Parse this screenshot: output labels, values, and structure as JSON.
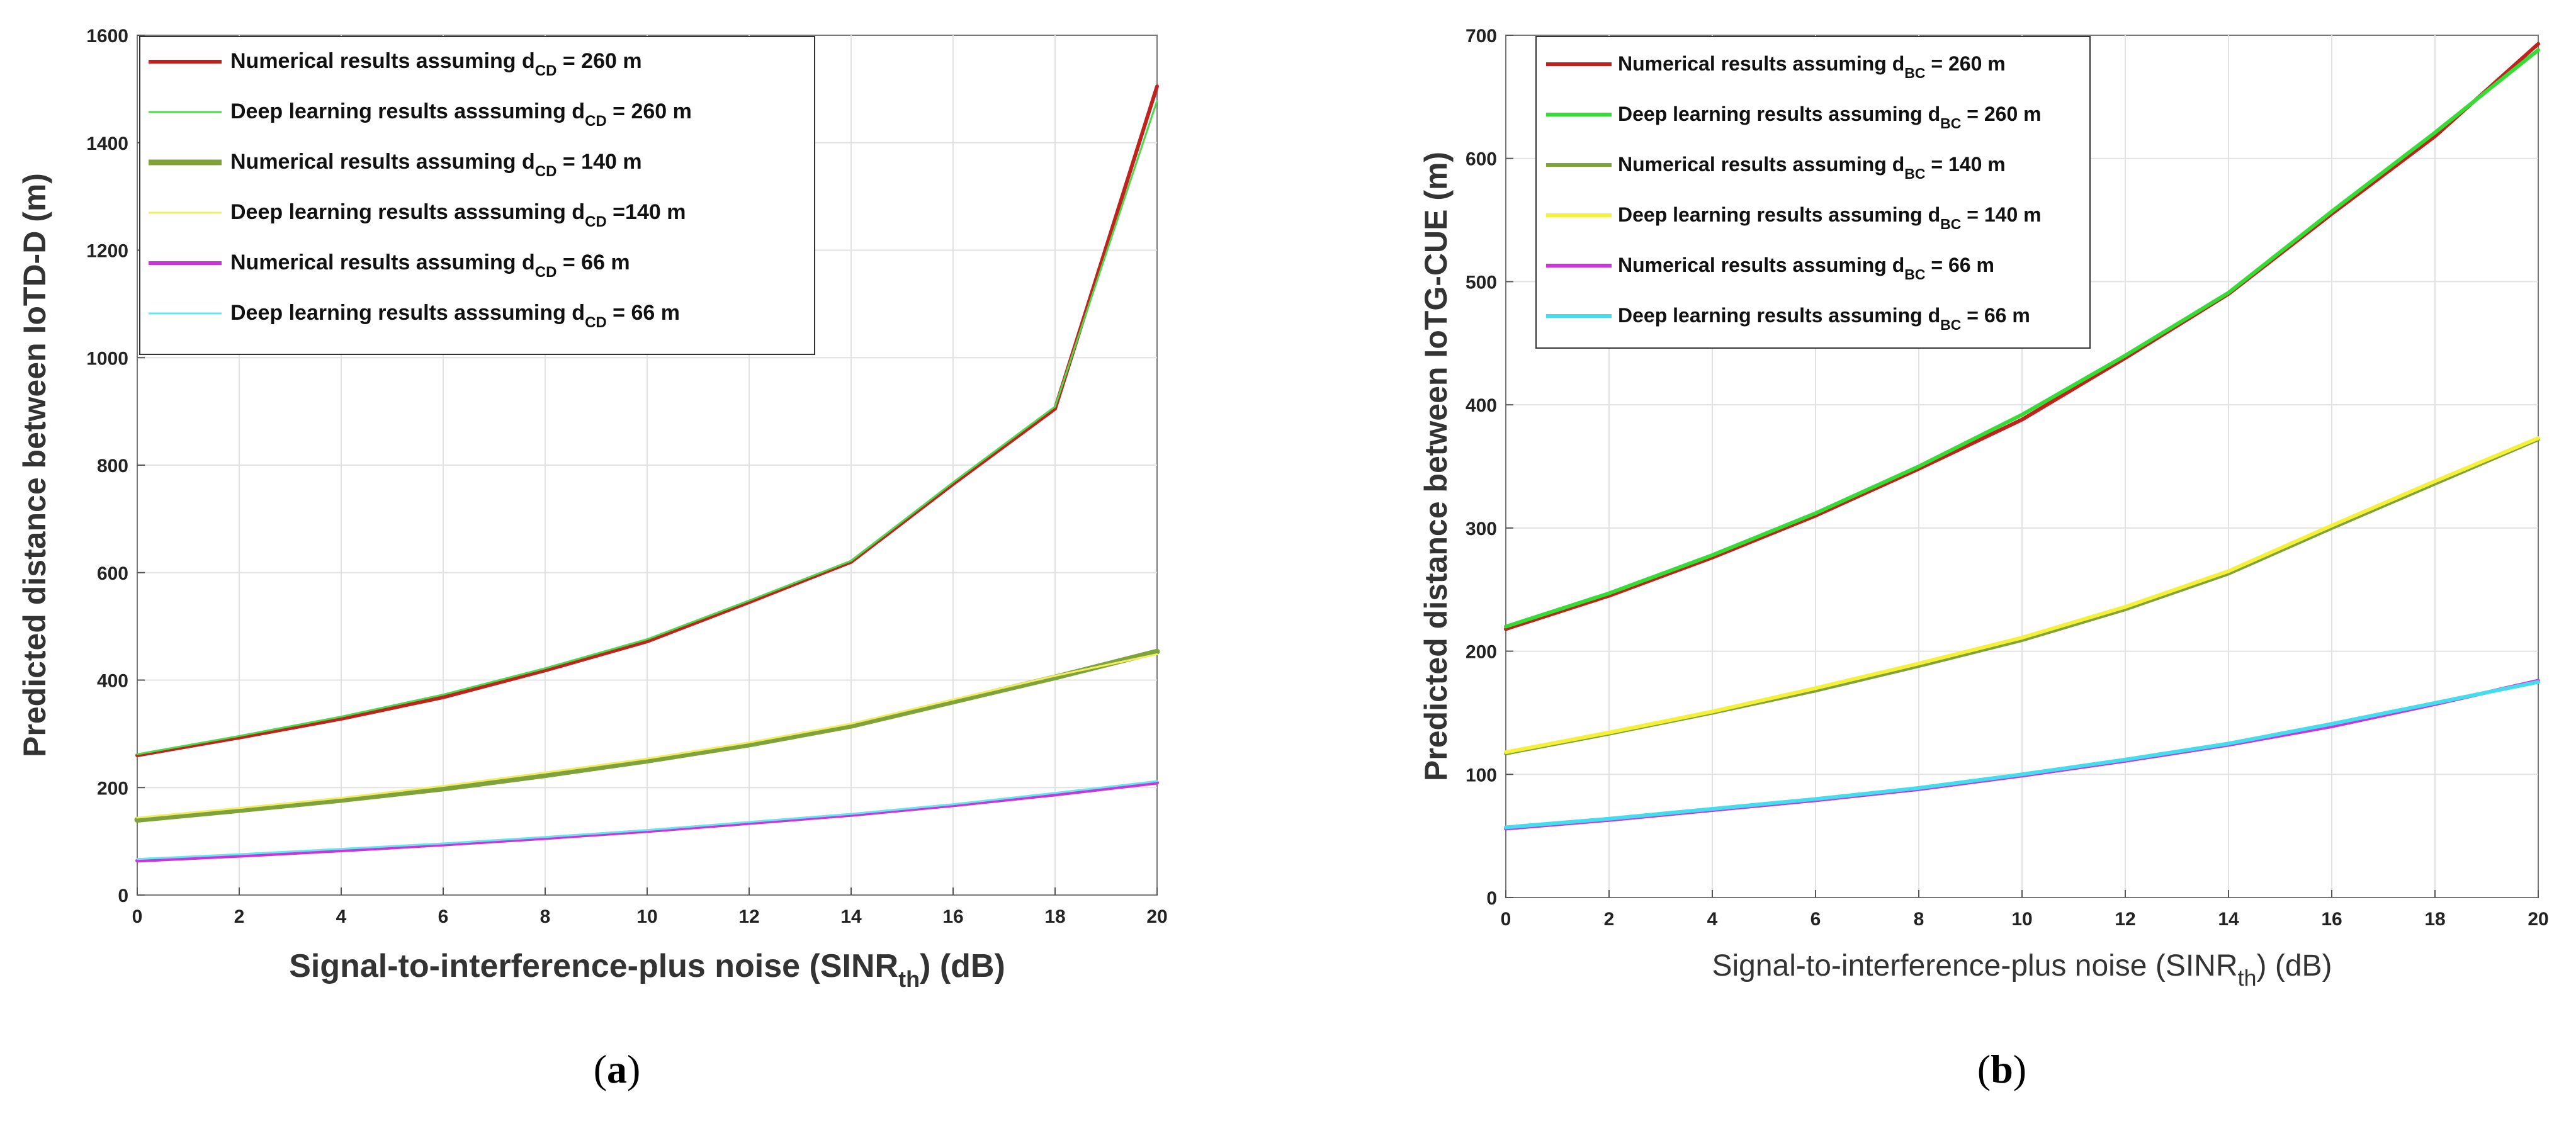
{
  "chart_data": [
    {
      "type": "line",
      "panel": "a",
      "caption_letter": "a",
      "xlabel_parts": [
        "Signal-to-interference-plus noise (SINR",
        "th",
        ") (dB)"
      ],
      "ylabel": "Predicted distance between IoTD-D (m)",
      "xlim": [
        0,
        20
      ],
      "ylim": [
        0,
        1600
      ],
      "xticks": [
        0,
        2,
        4,
        6,
        8,
        10,
        12,
        14,
        16,
        18,
        20
      ],
      "yticks": [
        0,
        200,
        400,
        600,
        800,
        1000,
        1200,
        1400,
        1600
      ],
      "x": [
        0,
        2,
        4,
        6,
        8,
        10,
        12,
        14,
        16,
        18,
        20
      ],
      "series": [
        {
          "name_parts": [
            "Numerical results assuming d",
            "CD",
            " = 260 m"
          ],
          "color": "#c0221e",
          "width": 6,
          "values": [
            260,
            293,
            328,
            368,
            418,
            472,
            545,
            620,
            765,
            905,
            1505
          ]
        },
        {
          "name_parts": [
            "Deep learning results asssuming d",
            "CD",
            " = 260 m"
          ],
          "color": "#4cd94c",
          "width": 3,
          "values": [
            262,
            296,
            332,
            373,
            422,
            476,
            548,
            622,
            768,
            909,
            1478
          ]
        },
        {
          "name_parts": [
            "Numerical results assuming d",
            "CD",
            " = 140 m"
          ],
          "color": "#7fa33a",
          "width": 9,
          "values": [
            140,
            158,
            177,
            198,
            223,
            250,
            280,
            315,
            360,
            405,
            453
          ]
        },
        {
          "name_parts": [
            "Deep learning results asssuming d",
            "CD",
            " =140 m"
          ],
          "color": "#f0ee66",
          "width": 3,
          "values": [
            144,
            162,
            181,
            203,
            228,
            254,
            284,
            319,
            364,
            408,
            448
          ]
        },
        {
          "name_parts": [
            "Numerical results assuming d",
            "CD",
            " = 66 m"
          ],
          "color": "#cc33dd",
          "width": 6,
          "values": [
            64,
            73,
            83,
            94,
            106,
            119,
            134,
            149,
            167,
            187,
            209
          ]
        },
        {
          "name_parts": [
            "Deep learning results asssuming d",
            "CD",
            " = 66 m"
          ],
          "color": "#66e6ee",
          "width": 3,
          "values": [
            67,
            76,
            86,
            96,
            108,
            121,
            136,
            151,
            169,
            190,
            212
          ]
        }
      ]
    },
    {
      "type": "line",
      "panel": "b",
      "caption_letter": "b",
      "xlabel_parts": [
        "Signal-to-interference-plus noise (SINR",
        "th",
        ") (dB)"
      ],
      "ylabel": "Predicted distance between IoTG-CUE (m)",
      "xlim": [
        0,
        20
      ],
      "ylim": [
        0,
        700
      ],
      "xticks": [
        0,
        2,
        4,
        6,
        8,
        10,
        12,
        14,
        16,
        18,
        20
      ],
      "yticks": [
        0,
        100,
        200,
        300,
        400,
        500,
        600,
        700
      ],
      "x": [
        0,
        2,
        4,
        6,
        8,
        10,
        12,
        14,
        16,
        18,
        20
      ],
      "series": [
        {
          "name_parts": [
            "Numerical results assuming d",
            "BC",
            " = 260 m"
          ],
          "color": "#c0221e",
          "width": 6,
          "values": [
            218,
            245,
            276,
            310,
            348,
            388,
            438,
            490,
            555,
            618,
            693
          ]
        },
        {
          "name_parts": [
            "Deep learning results assuming d",
            "BC",
            " = 260 m"
          ],
          "color": "#33dd33",
          "width": 6,
          "values": [
            220,
            247,
            278,
            312,
            350,
            392,
            440,
            491,
            557,
            621,
            688
          ]
        },
        {
          "name_parts": [
            "Numerical results assuming d",
            "BC",
            " = 140 m"
          ],
          "color": "#7fa33a",
          "width": 6,
          "values": [
            117,
            133,
            150,
            168,
            188,
            209,
            234,
            263,
            300,
            336,
            372
          ]
        },
        {
          "name_parts": [
            "Deep learning results assuming d",
            "BC",
            " = 140 m"
          ],
          "color": "#f5f03a",
          "width": 6,
          "values": [
            118,
            134,
            151,
            170,
            190,
            211,
            236,
            265,
            302,
            338,
            373
          ]
        },
        {
          "name_parts": [
            "Numerical results assuming d",
            "BC",
            " = 66 m"
          ],
          "color": "#cc33dd",
          "width": 6,
          "values": [
            56,
            63,
            71,
            79,
            88,
            99,
            111,
            124,
            139,
            157,
            176
          ]
        },
        {
          "name_parts": [
            "Deep learning results assuming d",
            "BC",
            " = 66 m"
          ],
          "color": "#44ddee",
          "width": 6,
          "values": [
            57,
            64,
            72,
            80,
            89,
            100,
            112,
            125,
            141,
            158,
            175
          ]
        }
      ]
    }
  ]
}
